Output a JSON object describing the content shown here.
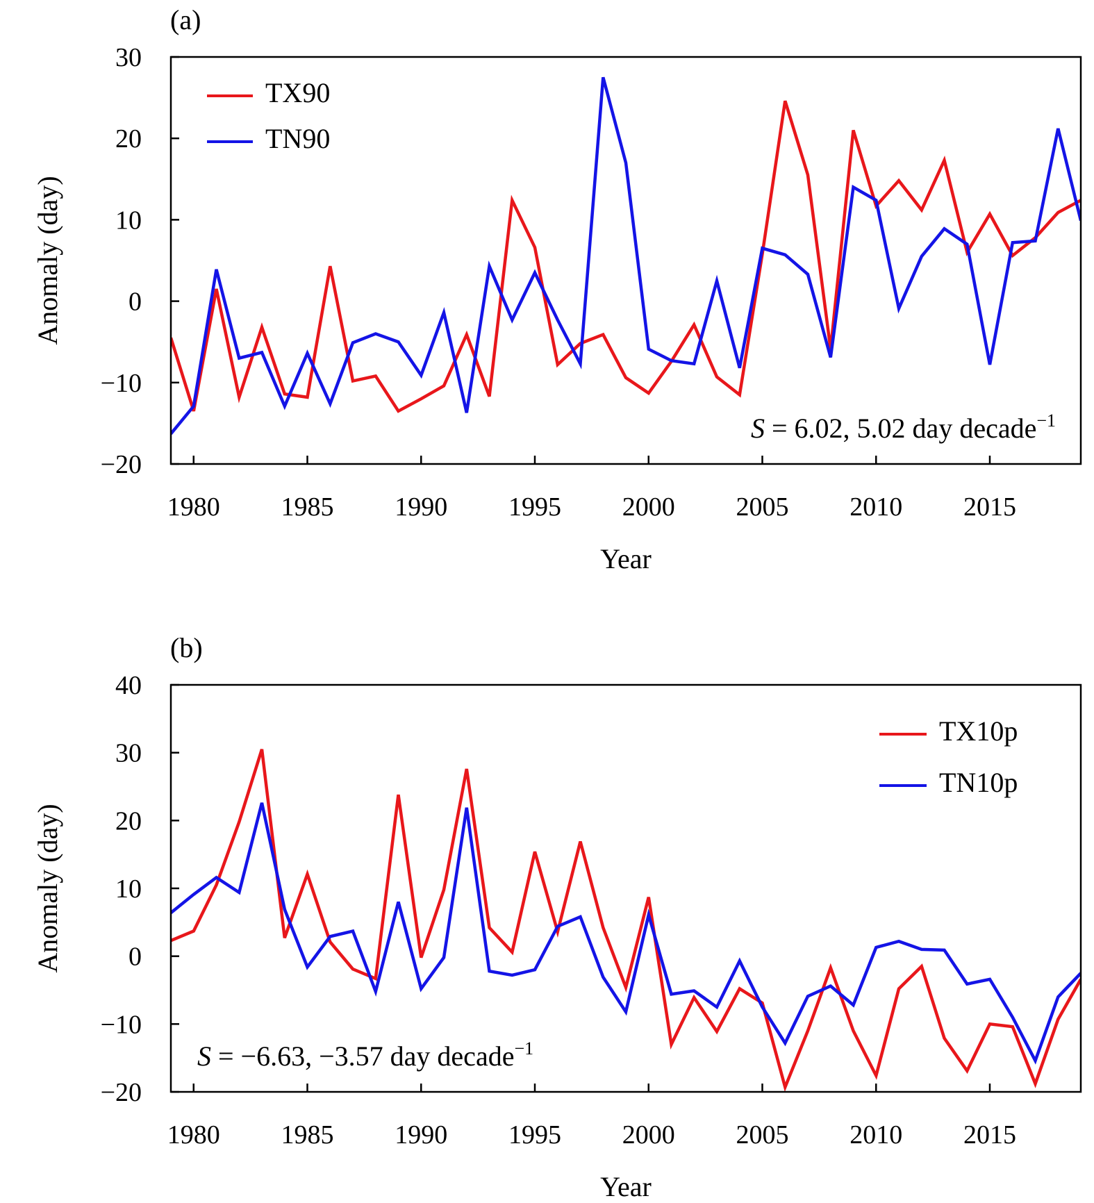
{
  "chart_data": [
    {
      "type": "line",
      "panel_label": "(a)",
      "xlabel": "Year",
      "ylabel": "Anomaly (day)",
      "xlim": [
        1979,
        2019
      ],
      "ylim": [
        -20,
        30
      ],
      "xticks": [
        1980,
        1985,
        1990,
        1995,
        2000,
        2005,
        2010,
        2015
      ],
      "xtick_labels": [
        "1980",
        "1985",
        "1990",
        "1995",
        "2000",
        "2005",
        "2010",
        "2015"
      ],
      "yticks": [
        -20,
        -10,
        0,
        10,
        20,
        30
      ],
      "ytick_labels": [
        "−20",
        "−10",
        "0",
        "10",
        "20",
        "30"
      ],
      "x": [
        1979,
        1980,
        1981,
        1982,
        1983,
        1984,
        1985,
        1986,
        1987,
        1988,
        1989,
        1990,
        1991,
        1992,
        1993,
        1994,
        1995,
        1996,
        1997,
        1998,
        1999,
        2000,
        2001,
        2002,
        2003,
        2004,
        2005,
        2006,
        2007,
        2008,
        2009,
        2010,
        2011,
        2012,
        2013,
        2014,
        2015,
        2016,
        2017,
        2018,
        2019
      ],
      "series": [
        {
          "name": "TX90",
          "color": "#e8171b",
          "values": [
            -4.5,
            -13.5,
            1.5,
            -11.8,
            -3.2,
            -11.4,
            -11.8,
            4.3,
            -9.8,
            -9.2,
            -13.5,
            -12.0,
            -10.4,
            -4.1,
            -11.7,
            12.4,
            6.6,
            -7.8,
            -5.2,
            -4.1,
            -9.4,
            -11.3,
            -7.4,
            -2.9,
            -9.3,
            -11.5,
            5.8,
            24.6,
            15.5,
            -5.9,
            21.0,
            11.7,
            14.8,
            11.2,
            17.3,
            6.0,
            10.7,
            5.6,
            7.8,
            10.9,
            12.4
          ]
        },
        {
          "name": "TN90",
          "color": "#1414e6",
          "values": [
            -16.3,
            -12.9,
            3.9,
            -7.0,
            -6.3,
            -12.9,
            -6.4,
            -12.6,
            -5.1,
            -4.0,
            -5.0,
            -9.1,
            -1.4,
            -13.7,
            4.3,
            -2.3,
            3.5,
            -2.3,
            -7.7,
            27.5,
            17.0,
            -5.9,
            -7.3,
            -7.7,
            2.5,
            -8.2,
            6.5,
            5.7,
            3.3,
            -6.9,
            14.0,
            12.4,
            -0.9,
            5.5,
            8.9,
            7.0,
            -7.8,
            7.2,
            7.4,
            21.2,
            9.9
          ]
        }
      ],
      "legend_position": "top-left",
      "annotation": {
        "var": "S",
        "text": " = 6.02, 5.02 day decade",
        "sup": "−1"
      }
    },
    {
      "type": "line",
      "panel_label": "(b)",
      "xlabel": "Year",
      "ylabel": "Anomaly (day)",
      "xlim": [
        1979,
        2019
      ],
      "ylim": [
        -20,
        40
      ],
      "xticks": [
        1980,
        1985,
        1990,
        1995,
        2000,
        2005,
        2010,
        2015
      ],
      "xtick_labels": [
        "1980",
        "1985",
        "1990",
        "1995",
        "2000",
        "2005",
        "2010",
        "2015"
      ],
      "yticks": [
        -20,
        -10,
        0,
        10,
        20,
        30,
        40
      ],
      "ytick_labels": [
        "−20",
        "−10",
        "0",
        "10",
        "20",
        "30",
        "40"
      ],
      "x": [
        1979,
        1980,
        1981,
        1982,
        1983,
        1984,
        1985,
        1986,
        1987,
        1988,
        1989,
        1990,
        1991,
        1992,
        1993,
        1994,
        1995,
        1996,
        1997,
        1998,
        1999,
        2000,
        2001,
        2002,
        2003,
        2004,
        2005,
        2006,
        2007,
        2008,
        2009,
        2010,
        2011,
        2012,
        2013,
        2014,
        2015,
        2016,
        2017,
        2018,
        2019
      ],
      "series": [
        {
          "name": "TX10p",
          "color": "#e8171b",
          "values": [
            2.3,
            3.7,
            10.5,
            19.8,
            30.5,
            2.7,
            12.1,
            2.1,
            -1.9,
            -3.3,
            23.8,
            -0.2,
            9.8,
            27.6,
            4.2,
            0.6,
            15.4,
            3.6,
            16.9,
            4.2,
            -4.6,
            8.7,
            -13.0,
            -6.1,
            -11.1,
            -4.8,
            -6.9,
            -19.3,
            -11.0,
            -1.7,
            -11.0,
            -17.6,
            -4.8,
            -1.5,
            -12.1,
            -16.9,
            -10.0,
            -10.4,
            -18.8,
            -9.3,
            -3.4
          ]
        },
        {
          "name": "TN10p",
          "color": "#1414e6",
          "values": [
            6.4,
            9.1,
            11.6,
            9.4,
            22.6,
            6.9,
            -1.6,
            2.9,
            3.7,
            -5.2,
            8.0,
            -4.8,
            -0.2,
            21.9,
            -2.2,
            -2.8,
            -2.0,
            4.4,
            5.8,
            -3.1,
            -8.2,
            6.1,
            -5.6,
            -5.1,
            -7.5,
            -0.7,
            -7.5,
            -12.8,
            -5.9,
            -4.4,
            -7.2,
            1.3,
            2.2,
            1.0,
            0.9,
            -4.1,
            -3.4,
            -9.0,
            -15.4,
            -6.0,
            -2.5
          ]
        }
      ],
      "legend_position": "top-right",
      "annotation": {
        "var": "S",
        "text": " = −6.63, −3.57 day decade",
        "sup": "−1"
      }
    }
  ]
}
